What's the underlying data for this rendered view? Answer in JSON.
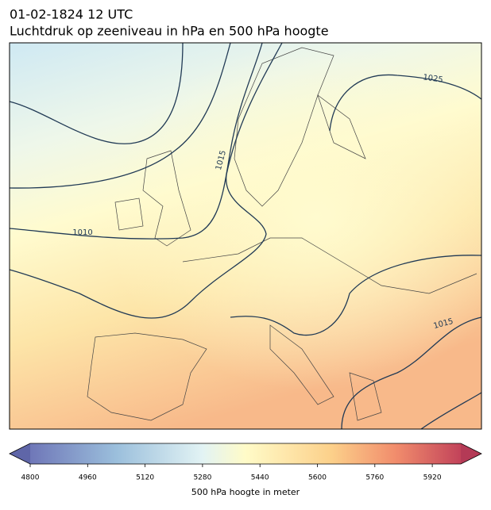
{
  "header": {
    "date": "01-02-1824 12 UTC",
    "title": "Luchtdruk op zeeniveau in hPa en 500 hPa hoogte"
  },
  "map": {
    "contour_labels": [
      "1025",
      "1015",
      "1010",
      "1015"
    ]
  },
  "colorbar": {
    "ticks": [
      "4800",
      "4960",
      "5120",
      "5280",
      "5440",
      "5600",
      "5760",
      "5920"
    ],
    "label": "500 hPa hoogte in meter"
  }
}
